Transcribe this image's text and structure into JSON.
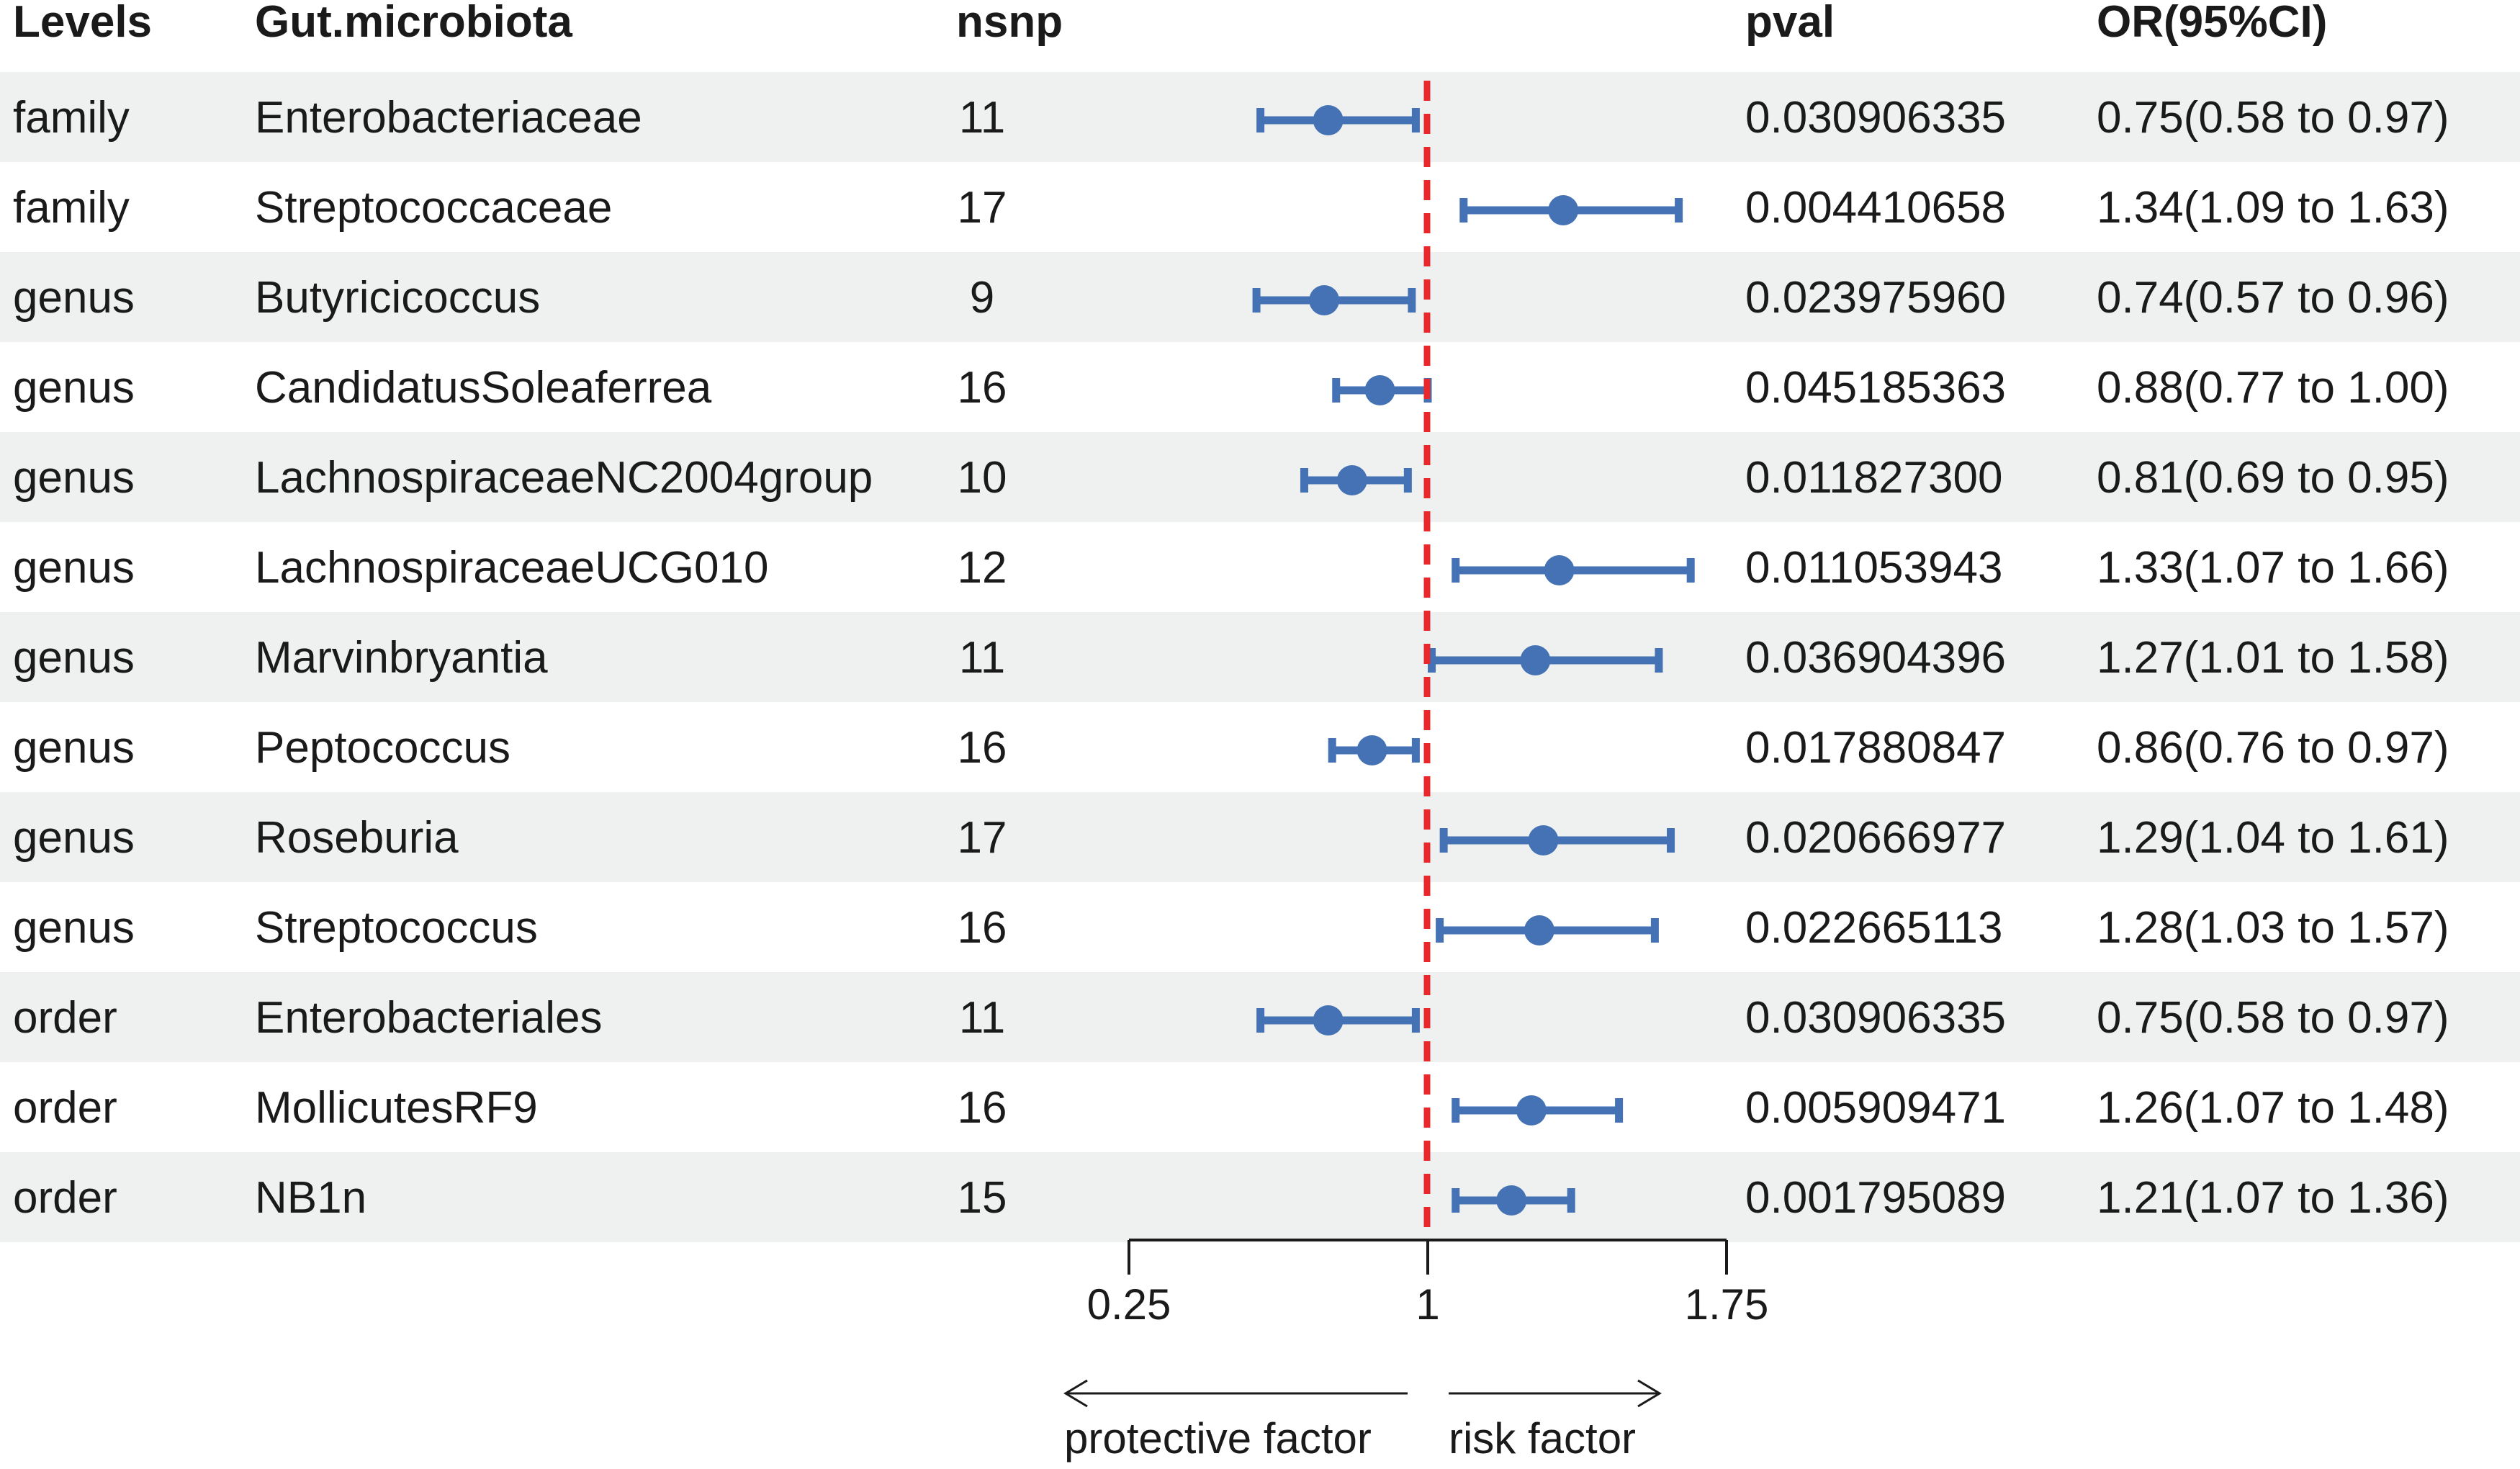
{
  "headers": {
    "levels": "Levels",
    "taxon": "Gut.microbiota",
    "nsnp": "nsnp",
    "pval": "pval",
    "or": "OR(95%CI)"
  },
  "colors": {
    "band": "#eef1f0",
    "point": "#4472b4",
    "reference_line": "#e8282b",
    "text": "#1a1a1a"
  },
  "chart_data": {
    "type": "forest",
    "reference_value": 1,
    "xlim": [
      0.25,
      1.75
    ],
    "x_ticks": [
      {
        "value": 0.25,
        "label": "0.25"
      },
      {
        "value": 1,
        "label": "1"
      },
      {
        "value": 1.75,
        "label": "1.75"
      }
    ],
    "annotations": {
      "left": "protective factor",
      "right": "risk factor"
    },
    "rows": [
      {
        "level": "family",
        "taxon": "Enterobacteriaceae",
        "nsnp": "11",
        "pval": "0.030906335",
        "or_text": "0.75(0.58 to 0.97)",
        "or": 0.75,
        "lo": 0.58,
        "hi": 0.97
      },
      {
        "level": "family",
        "taxon": "Streptococcaceae",
        "nsnp": "17",
        "pval": "0.004410658",
        "or_text": "1.34(1.09 to 1.63)",
        "or": 1.34,
        "lo": 1.09,
        "hi": 1.63
      },
      {
        "level": "genus",
        "taxon": "Butyricicoccus",
        "nsnp": "9",
        "pval": "0.023975960",
        "or_text": "0.74(0.57 to 0.96)",
        "or": 0.74,
        "lo": 0.57,
        "hi": 0.96
      },
      {
        "level": "genus",
        "taxon": "CandidatusSoleaferrea",
        "nsnp": "16",
        "pval": "0.045185363",
        "or_text": "0.88(0.77 to 1.00)",
        "or": 0.88,
        "lo": 0.77,
        "hi": 1.0
      },
      {
        "level": "genus",
        "taxon": "LachnospiraceaeNC2004group",
        "nsnp": "10",
        "pval": "0.011827300",
        "or_text": "0.81(0.69 to 0.95)",
        "or": 0.81,
        "lo": 0.69,
        "hi": 0.95
      },
      {
        "level": "genus",
        "taxon": "LachnospiraceaeUCG010",
        "nsnp": "12",
        "pval": "0.011053943",
        "or_text": "1.33(1.07 to 1.66)",
        "or": 1.33,
        "lo": 1.07,
        "hi": 1.66
      },
      {
        "level": "genus",
        "taxon": "Marvinbryantia",
        "nsnp": "11",
        "pval": "0.036904396",
        "or_text": "1.27(1.01 to 1.58)",
        "or": 1.27,
        "lo": 1.01,
        "hi": 1.58
      },
      {
        "level": "genus",
        "taxon": "Peptococcus",
        "nsnp": "16",
        "pval": "0.017880847",
        "or_text": "0.86(0.76 to 0.97)",
        "or": 0.86,
        "lo": 0.76,
        "hi": 0.97
      },
      {
        "level": "genus",
        "taxon": "Roseburia",
        "nsnp": "17",
        "pval": "0.020666977",
        "or_text": "1.29(1.04 to 1.61)",
        "or": 1.29,
        "lo": 1.04,
        "hi": 1.61
      },
      {
        "level": "genus",
        "taxon": "Streptococcus",
        "nsnp": "16",
        "pval": "0.022665113",
        "or_text": "1.28(1.03 to 1.57)",
        "or": 1.28,
        "lo": 1.03,
        "hi": 1.57
      },
      {
        "level": "order",
        "taxon": "Enterobacteriales",
        "nsnp": "11",
        "pval": "0.030906335",
        "or_text": "0.75(0.58 to 0.97)",
        "or": 0.75,
        "lo": 0.58,
        "hi": 0.97
      },
      {
        "level": "order",
        "taxon": "MollicutesRF9",
        "nsnp": "16",
        "pval": "0.005909471",
        "or_text": "1.26(1.07 to 1.48)",
        "or": 1.26,
        "lo": 1.07,
        "hi": 1.48
      },
      {
        "level": "order",
        "taxon": "NB1n",
        "nsnp": "15",
        "pval": "0.001795089",
        "or_text": "1.21(1.07 to 1.36)",
        "or": 1.21,
        "lo": 1.07,
        "hi": 1.36
      }
    ]
  }
}
